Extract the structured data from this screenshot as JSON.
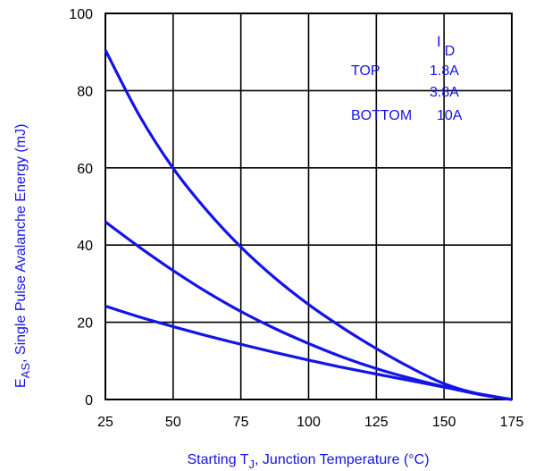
{
  "chart_data": {
    "type": "line",
    "xlabel": {
      "pre": "Starting T",
      "sub": "J",
      "post": ", Junction Temperature (°C)"
    },
    "ylabel": {
      "pre": "E",
      "sub": "AS",
      "post": ",  Single Pulse Avalanche Energy (mJ)"
    },
    "xlim": [
      25,
      175
    ],
    "ylim": [
      0,
      100
    ],
    "xticks": [
      25,
      50,
      75,
      100,
      125,
      150,
      175
    ],
    "yticks": [
      0,
      20,
      40,
      60,
      80,
      100
    ],
    "grid": true,
    "legend": {
      "header": {
        "pre": "I",
        "sub": "D"
      },
      "rows": [
        {
          "label": "TOP",
          "value": "1.8A"
        },
        {
          "label": "",
          "value": "3.8A"
        },
        {
          "label": "BOTTOM",
          "value": "10A"
        }
      ]
    },
    "series": [
      {
        "name": "1.8A",
        "color": "#1414e6",
        "x": [
          25,
          37.5,
          50,
          62.5,
          75,
          87.5,
          100,
          112.5,
          125,
          137.5,
          150,
          162.5,
          175
        ],
        "y": [
          90.5,
          73.6,
          59.9,
          48.9,
          39.5,
          31.5,
          24.6,
          18.6,
          13.2,
          8.3,
          4.1,
          1.5,
          0
        ]
      },
      {
        "name": "3.8A",
        "color": "#1414e6",
        "x": [
          25,
          37.5,
          50,
          62.5,
          75,
          87.5,
          100,
          112.5,
          125,
          137.5,
          150,
          162.5,
          175
        ],
        "y": [
          46.0,
          39.5,
          33.4,
          27.8,
          22.8,
          18.4,
          14.5,
          11.0,
          8.0,
          5.5,
          3.3,
          1.4,
          0
        ]
      },
      {
        "name": "10A",
        "color": "#1414e6",
        "x": [
          25,
          37.5,
          50,
          62.5,
          75,
          87.5,
          100,
          112.5,
          125,
          137.5,
          150,
          162.5,
          175
        ],
        "y": [
          24.2,
          21.4,
          18.9,
          16.5,
          14.3,
          12.2,
          10.2,
          8.3,
          6.6,
          4.9,
          3.2,
          1.5,
          0
        ]
      }
    ]
  }
}
